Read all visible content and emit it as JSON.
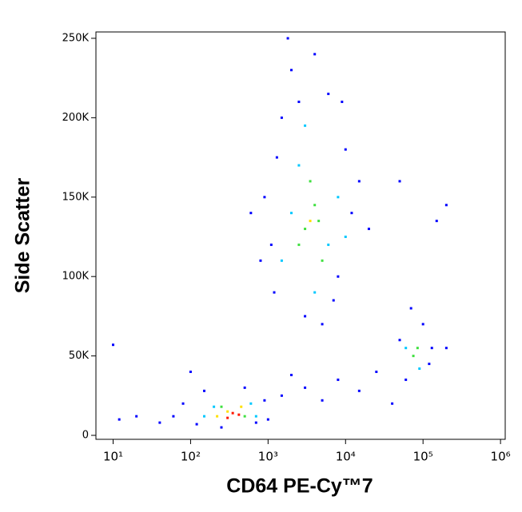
{
  "chart_data": {
    "type": "scatter",
    "x_label": "CD64 PE-Cy™7",
    "y_label": "Side Scatter",
    "log_x": true,
    "xlim": [
      6,
      1150000
    ],
    "xticks": [
      {
        "value": 10,
        "label": "10¹"
      },
      {
        "value": 100,
        "label": "10²"
      },
      {
        "value": 1000,
        "label": "10³"
      },
      {
        "value": 10000,
        "label": "10⁴"
      },
      {
        "value": 100000,
        "label": "10⁵"
      },
      {
        "value": 1000000,
        "label": "10⁶"
      }
    ],
    "ylim": [
      -2500,
      254000
    ],
    "yticks": [
      0,
      {
        "value": 50000,
        "label": "50K"
      },
      {
        "value": 100000,
        "label": "100K"
      },
      {
        "value": 150000,
        "label": "150K"
      },
      {
        "value": 200000,
        "label": "200K"
      },
      {
        "value": 250000,
        "label": "250K"
      }
    ],
    "series": [
      {
        "color": "#0000ff",
        "x": [
          1200,
          1500,
          2000,
          900,
          1100,
          8000,
          10000,
          12000,
          3000,
          5000,
          2500,
          6000,
          15000,
          800,
          20000,
          4000,
          1800,
          7000,
          1300,
          9000,
          60,
          80,
          150,
          500,
          900,
          40,
          1000,
          250,
          700,
          120,
          12,
          20,
          1500,
          3000,
          5000,
          8000,
          15000,
          25000,
          2000,
          40000,
          50000,
          120000,
          60000,
          100000,
          70000,
          130000,
          200000,
          10,
          150000,
          200000,
          50000,
          600,
          100
        ],
        "y": [
          90000,
          200000,
          230000,
          150000,
          120000,
          100000,
          180000,
          140000,
          75000,
          70000,
          210000,
          215000,
          160000,
          110000,
          130000,
          240000,
          250000,
          85000,
          175000,
          210000,
          12000,
          20000,
          28000,
          30000,
          22000,
          8000,
          10000,
          5000,
          8000,
          7000,
          10000,
          12000,
          25000,
          30000,
          22000,
          35000,
          28000,
          40000,
          38000,
          20000,
          60000,
          45000,
          35000,
          70000,
          80000,
          55000,
          55000,
          57000,
          135000,
          145000,
          160000,
          140000,
          40000
        ]
      },
      {
        "color": "#00c8ff",
        "x": [
          1500,
          2500,
          6000,
          4000,
          8000,
          2000,
          3000,
          10000,
          150,
          600,
          200,
          700,
          60000,
          90000
        ],
        "y": [
          110000,
          170000,
          120000,
          90000,
          150000,
          140000,
          195000,
          125000,
          12000,
          20000,
          18000,
          12000,
          55000,
          42000
        ]
      },
      {
        "color": "#40e040",
        "x": [
          3000,
          4000,
          2500,
          5000,
          3500,
          4500,
          250,
          500,
          75000,
          85000
        ],
        "y": [
          130000,
          145000,
          120000,
          110000,
          160000,
          135000,
          18000,
          12000,
          50000,
          55000
        ]
      },
      {
        "color": "#ffe000",
        "x": [
          300,
          450,
          220,
          3500
        ],
        "y": [
          15000,
          18000,
          12000,
          135000
        ]
      },
      {
        "color": "#ff1800",
        "x": [
          350,
          420,
          300
        ],
        "y": [
          14000,
          13000,
          11000
        ]
      }
    ]
  }
}
